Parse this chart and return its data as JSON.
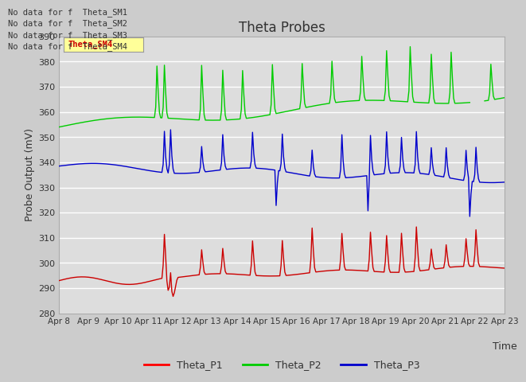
{
  "title": "Theta Probes",
  "xlabel": "Time",
  "ylabel": "Probe Output (mV)",
  "background_color": "#cccccc",
  "plot_bg_color": "#dddddd",
  "ylim": [
    280,
    390
  ],
  "yticks": [
    280,
    290,
    300,
    310,
    320,
    330,
    340,
    350,
    360,
    370,
    380,
    390
  ],
  "date_labels": [
    "Apr 8",
    "Apr 9",
    "Apr 10",
    "Apr 11",
    "Apr 12",
    "Apr 13",
    "Apr 14",
    "Apr 15",
    "Apr 16",
    "Apr 17",
    "Apr 18",
    "Apr 19",
    "Apr 20",
    "Apr 21",
    "Apr 22",
    "Apr 23"
  ],
  "no_data_texts": [
    "No data for f  Theta_SM1",
    "No data for f  Theta_SM2",
    "No data for f  Theta_SM3",
    "No data for f  Theta_SM4"
  ],
  "legend_entries": [
    "Theta_P1",
    "Theta_P2",
    "Theta_P3"
  ],
  "legend_colors": [
    "#ff0000",
    "#00cc00",
    "#0000cc"
  ],
  "grid_color": "#bbbbbb",
  "line_color_p1": "#cc0000",
  "line_color_p2": "#00cc00",
  "line_color_p3": "#0000cc",
  "tooltip_bg": "#ffff99",
  "tooltip_text": "Theta_SM4",
  "tooltip_text_color": "#cc0000"
}
